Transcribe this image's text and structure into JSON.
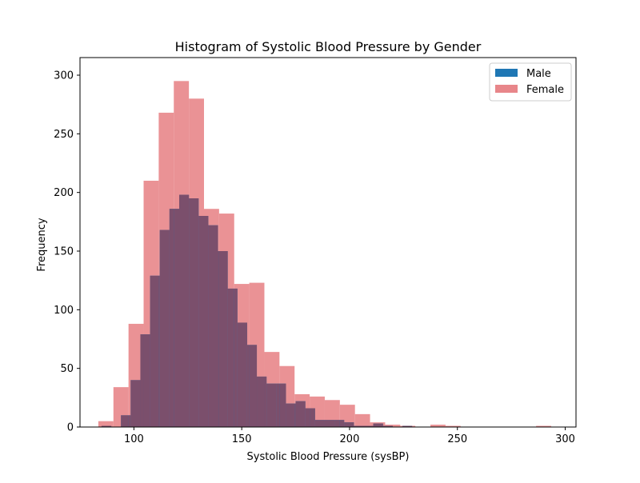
{
  "chart_data": {
    "type": "histogram",
    "title": "Histogram of Systolic Blood Pressure by Gender",
    "xlabel": "Systolic Blood Pressure (sysBP)",
    "ylabel": "Frequency",
    "xlim": [
      75,
      305
    ],
    "ylim": [
      0,
      315
    ],
    "xticks": [
      100,
      150,
      200,
      250,
      300
    ],
    "yticks": [
      0,
      50,
      100,
      150,
      200,
      250,
      300
    ],
    "grid": false,
    "legend_position": "top-right",
    "series": [
      {
        "name": "Male",
        "color": "#1f77b4",
        "alpha": 1.0,
        "bins": [
          [
            85.0,
            89.5,
            1
          ],
          [
            89.5,
            94.0,
            0
          ],
          [
            94.0,
            98.5,
            10
          ],
          [
            98.5,
            103.0,
            40
          ],
          [
            103.0,
            107.5,
            79
          ],
          [
            107.5,
            112.0,
            129
          ],
          [
            112.0,
            116.5,
            168
          ],
          [
            116.5,
            121.0,
            186
          ],
          [
            121.0,
            125.5,
            198
          ],
          [
            125.5,
            130.0,
            195
          ],
          [
            130.0,
            134.5,
            180
          ],
          [
            134.5,
            139.0,
            172
          ],
          [
            139.0,
            143.5,
            150
          ],
          [
            143.5,
            148.0,
            118
          ],
          [
            148.0,
            152.5,
            89
          ],
          [
            152.5,
            157.0,
            70
          ],
          [
            157.0,
            161.5,
            43
          ],
          [
            161.5,
            166.0,
            37
          ],
          [
            166.0,
            170.5,
            37
          ],
          [
            170.5,
            175.0,
            20
          ],
          [
            175.0,
            179.5,
            22
          ],
          [
            179.5,
            184.0,
            16
          ],
          [
            184.0,
            188.5,
            6
          ],
          [
            188.5,
            193.0,
            6
          ],
          [
            193.0,
            197.5,
            6
          ],
          [
            197.5,
            202.0,
            4
          ],
          [
            202.0,
            206.5,
            1
          ],
          [
            206.5,
            211.0,
            1
          ],
          [
            211.0,
            215.5,
            3
          ],
          [
            215.5,
            220.0,
            1
          ],
          [
            220.0,
            224.5,
            0
          ],
          [
            224.5,
            229.0,
            1
          ]
        ]
      },
      {
        "name": "Female",
        "color": "#e8868a",
        "alpha": 0.9,
        "bins": [
          [
            83.5,
            90.5,
            5
          ],
          [
            90.5,
            97.5,
            34
          ],
          [
            97.5,
            104.5,
            88
          ],
          [
            104.5,
            111.5,
            210
          ],
          [
            111.5,
            118.5,
            268
          ],
          [
            118.5,
            125.5,
            295
          ],
          [
            125.5,
            132.5,
            280
          ],
          [
            132.5,
            139.5,
            186
          ],
          [
            139.5,
            146.5,
            182
          ],
          [
            146.5,
            153.5,
            122
          ],
          [
            153.5,
            160.5,
            123
          ],
          [
            160.5,
            167.5,
            64
          ],
          [
            167.5,
            174.5,
            52
          ],
          [
            174.5,
            181.5,
            28
          ],
          [
            181.5,
            188.5,
            26
          ],
          [
            188.5,
            195.5,
            23
          ],
          [
            195.5,
            202.5,
            19
          ],
          [
            202.5,
            209.5,
            11
          ],
          [
            209.5,
            216.5,
            4
          ],
          [
            216.5,
            223.5,
            2
          ],
          [
            223.5,
            230.5,
            1
          ],
          [
            230.5,
            237.5,
            0
          ],
          [
            237.5,
            244.5,
            2
          ],
          [
            244.5,
            251.5,
            1
          ],
          [
            251.5,
            258.5,
            0
          ],
          [
            258.5,
            265.5,
            0
          ],
          [
            265.5,
            272.5,
            0
          ],
          [
            272.5,
            279.5,
            0
          ],
          [
            279.5,
            286.5,
            0
          ],
          [
            286.5,
            293.5,
            1
          ],
          [
            293.5,
            300.5,
            0
          ]
        ]
      }
    ],
    "overlap_color": "#7b4f6c"
  }
}
